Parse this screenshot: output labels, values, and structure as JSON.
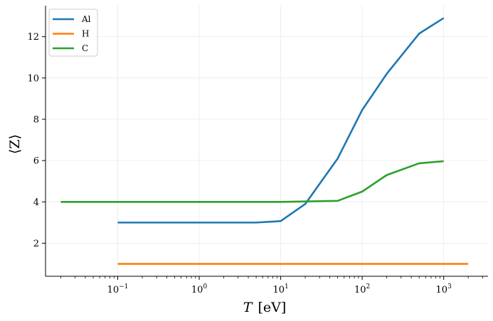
{
  "chart_data": {
    "type": "line",
    "title": "",
    "xlabel": "T [eV]",
    "xlabel_italic_var": "T",
    "xlabel_unit": "[eV]",
    "ylabel": "⟨Z⟩",
    "xscale": "log",
    "xlim": [
      0.013,
      3500
    ],
    "ylim": [
      0.4,
      13.5
    ],
    "xticks": [
      {
        "value": 0.1,
        "base": "10",
        "exp": "−1"
      },
      {
        "value": 1,
        "base": "10",
        "exp": "0"
      },
      {
        "value": 10,
        "base": "10",
        "exp": "1"
      },
      {
        "value": 100,
        "base": "10",
        "exp": "2"
      },
      {
        "value": 1000,
        "base": "10",
        "exp": "3"
      }
    ],
    "yticks": [
      2,
      4,
      6,
      8,
      10,
      12
    ],
    "grid": true,
    "legend_position": "top-left",
    "series": [
      {
        "name": "Al",
        "color": "#1f77b4",
        "x": [
          0.1,
          1,
          5,
          10,
          20,
          50,
          100,
          200,
          500,
          1000
        ],
        "y": [
          3.0,
          3.0,
          3.0,
          3.07,
          3.9,
          6.1,
          8.45,
          10.2,
          12.15,
          12.9
        ]
      },
      {
        "name": "H",
        "color": "#ff7f0e",
        "x": [
          0.1,
          1,
          10,
          100,
          1000,
          2000
        ],
        "y": [
          1.0,
          1.0,
          1.0,
          1.0,
          1.0,
          1.0
        ]
      },
      {
        "name": "C",
        "color": "#2ca02c",
        "x": [
          0.02,
          0.1,
          1,
          10,
          20,
          50,
          100,
          200,
          500,
          1000
        ],
        "y": [
          4.0,
          4.0,
          4.0,
          4.0,
          4.02,
          4.05,
          4.5,
          5.3,
          5.87,
          5.97
        ]
      }
    ]
  }
}
